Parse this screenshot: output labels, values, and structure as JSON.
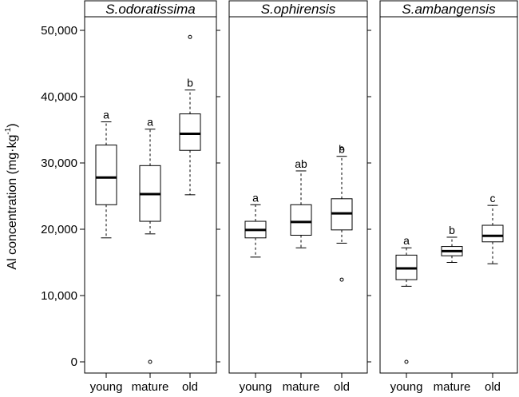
{
  "chart_data": {
    "type": "boxplot",
    "ylabel": "Al concentration (mg·kg",
    "ylabel_sup": "-1",
    "ylabel_close": ")",
    "ylim": [
      -1500,
      52000
    ],
    "yticks": [
      0,
      10000,
      20000,
      30000,
      40000,
      50000
    ],
    "ytick_labels": [
      "0",
      "10,000",
      "20,000",
      "30,000",
      "40,000",
      "50,000"
    ],
    "categories": [
      "young",
      "mature",
      "old"
    ],
    "panels": [
      {
        "title": "S.odoratissima",
        "boxes": [
          {
            "group": "young",
            "whisker_low": 18700,
            "q1": 23700,
            "median": 27800,
            "q3": 32700,
            "whisker_high": 36200,
            "outliers": [],
            "letter": "a"
          },
          {
            "group": "mature",
            "whisker_low": 19300,
            "q1": 21200,
            "median": 25300,
            "q3": 29600,
            "whisker_high": 35100,
            "outliers": [
              0
            ],
            "letter": "a"
          },
          {
            "group": "old",
            "whisker_low": 25200,
            "q1": 31900,
            "median": 34400,
            "q3": 37400,
            "whisker_high": 41000,
            "outliers": [
              49000
            ],
            "letter": "b"
          }
        ]
      },
      {
        "title": "S.ophirensis",
        "boxes": [
          {
            "group": "young",
            "whisker_low": 15800,
            "q1": 18700,
            "median": 19900,
            "q3": 21200,
            "whisker_high": 23700,
            "outliers": [],
            "letter": "a"
          },
          {
            "group": "mature",
            "whisker_low": 17200,
            "q1": 19100,
            "median": 21100,
            "q3": 23700,
            "whisker_high": 28800,
            "outliers": [],
            "letter": "ab"
          },
          {
            "group": "old",
            "whisker_low": 17900,
            "q1": 19900,
            "median": 22400,
            "q3": 24600,
            "whisker_high": 31000,
            "outliers": [
              12400,
              32200
            ],
            "letter": "b"
          }
        ]
      },
      {
        "title": "S.ambangensis",
        "boxes": [
          {
            "group": "young",
            "whisker_low": 11400,
            "q1": 12400,
            "median": 14100,
            "q3": 16100,
            "whisker_high": 17200,
            "outliers": [
              0
            ],
            "letter": "a"
          },
          {
            "group": "mature",
            "whisker_low": 15000,
            "q1": 16000,
            "median": 16700,
            "q3": 17400,
            "whisker_high": 18800,
            "outliers": [],
            "letter": "b"
          },
          {
            "group": "old",
            "whisker_low": 14800,
            "q1": 18100,
            "median": 19000,
            "q3": 20600,
            "whisker_high": 23600,
            "outliers": [],
            "letter": "c"
          }
        ]
      }
    ]
  }
}
